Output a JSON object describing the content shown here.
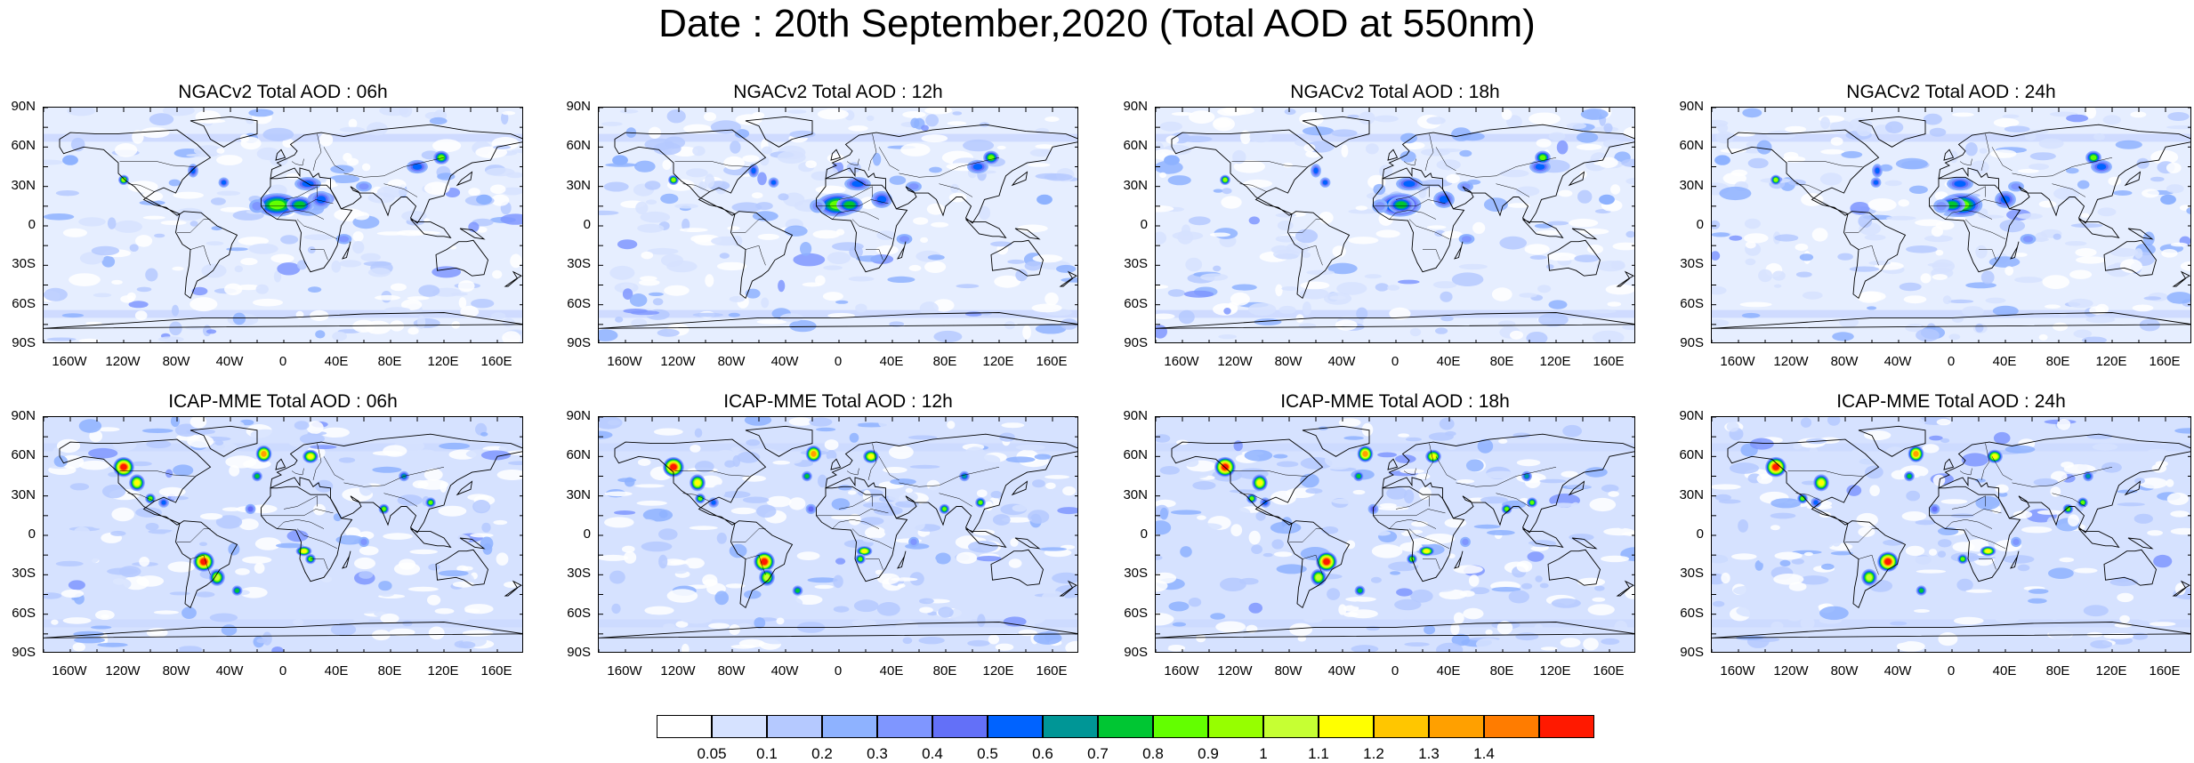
{
  "title": "Date : 20th September,2020 (Total AOD at 550nm)",
  "panels": [
    {
      "title": "NGACv2 Total AOD : 06h",
      "model": "NGACv2"
    },
    {
      "title": "NGACv2 Total AOD : 12h",
      "model": "NGACv2"
    },
    {
      "title": "NGACv2 Total AOD : 18h",
      "model": "NGACv2"
    },
    {
      "title": "NGACv2 Total AOD : 24h",
      "model": "NGACv2"
    },
    {
      "title": "ICAP-MME Total AOD : 06h",
      "model": "ICAP-MME"
    },
    {
      "title": "ICAP-MME Total AOD : 12h",
      "model": "ICAP-MME"
    },
    {
      "title": "ICAP-MME Total AOD : 18h",
      "model": "ICAP-MME"
    },
    {
      "title": "ICAP-MME Total AOD : 24h",
      "model": "ICAP-MME"
    }
  ],
  "lat_labels": [
    "90N",
    "60N",
    "30N",
    "0",
    "30S",
    "60S",
    "90S"
  ],
  "lon_labels": [
    "160W",
    "120W",
    "80W",
    "40W",
    "0",
    "40E",
    "80E",
    "120E",
    "160E"
  ],
  "colorbar": {
    "labels": [
      "0.05",
      "0.1",
      "0.2",
      "0.3",
      "0.4",
      "0.5",
      "0.6",
      "0.7",
      "0.8",
      "0.9",
      "1",
      "1.1",
      "1.2",
      "1.3",
      "1.4"
    ],
    "colors": [
      "#ffffff",
      "#d6e2ff",
      "#b5c9ff",
      "#8eb2ff",
      "#7f96ff",
      "#6370f8",
      "#0063ff",
      "#009696",
      "#00c633",
      "#63ff00",
      "#96ff00",
      "#c6ff33",
      "#ffff00",
      "#ffc600",
      "#ffa000",
      "#ff7c00",
      "#ff1900"
    ]
  }
}
